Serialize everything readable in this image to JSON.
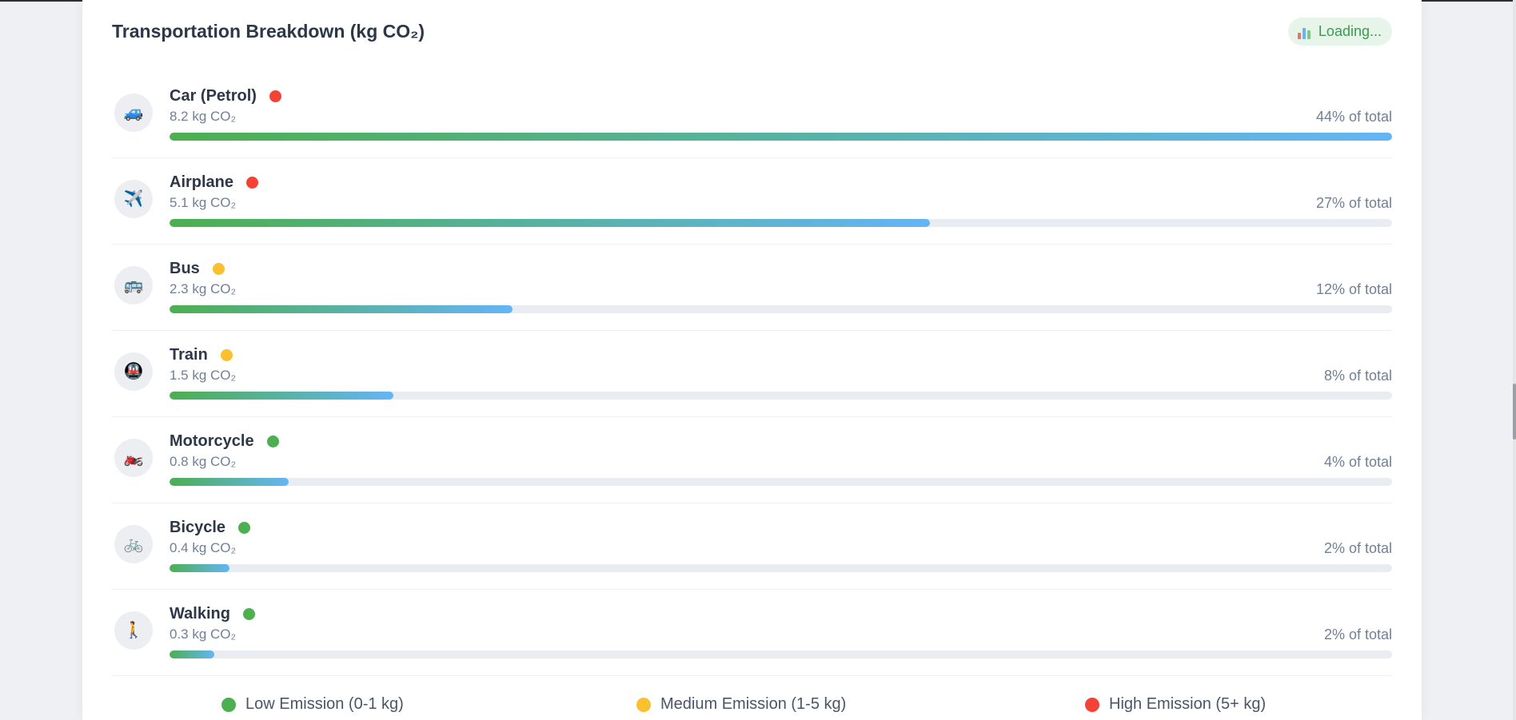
{
  "panel": {
    "title": "Transportation Breakdown (kg CO₂)",
    "status": "Loading..."
  },
  "colors": {
    "low": "#4caf50",
    "medium": "#fbc02d",
    "high": "#f44336",
    "bar_start": "#4caf50",
    "bar_end": "#64b5f6"
  },
  "rows": [
    {
      "key": "car",
      "icon": "car-icon",
      "glyph": "🚙",
      "name": "Car (Petrol)",
      "level": "high",
      "amount": "8.2 kg CO₂",
      "percent_label": "44% of total",
      "value": 8.2
    },
    {
      "key": "airplane",
      "icon": "airplane-icon",
      "glyph": "✈️",
      "name": "Airplane",
      "level": "high",
      "amount": "5.1 kg CO₂",
      "percent_label": "27% of total",
      "value": 5.1
    },
    {
      "key": "bus",
      "icon": "bus-icon",
      "glyph": "🚌",
      "name": "Bus",
      "level": "medium",
      "amount": "2.3 kg CO₂",
      "percent_label": "12% of total",
      "value": 2.3
    },
    {
      "key": "train",
      "icon": "train-icon",
      "glyph": "🚇",
      "name": "Train",
      "level": "medium",
      "amount": "1.5 kg CO₂",
      "percent_label": "8% of total",
      "value": 1.5
    },
    {
      "key": "motorcycle",
      "icon": "motorcycle-icon",
      "glyph": "🏍️",
      "name": "Motorcycle",
      "level": "low",
      "amount": "0.8 kg CO₂",
      "percent_label": "4% of total",
      "value": 0.8
    },
    {
      "key": "bicycle",
      "icon": "bicycle-icon",
      "glyph": "🚲",
      "name": "Bicycle",
      "level": "low",
      "amount": "0.4 kg CO₂",
      "percent_label": "2% of total",
      "value": 0.4
    },
    {
      "key": "walking",
      "icon": "walking-icon",
      "glyph": "🚶",
      "name": "Walking",
      "level": "low",
      "amount": "0.3 kg CO₂",
      "percent_label": "2% of total",
      "value": 0.3
    }
  ],
  "legend": [
    {
      "level": "low",
      "label": "Low Emission (0-1 kg)"
    },
    {
      "level": "medium",
      "label": "Medium Emission (1-5 kg)"
    },
    {
      "level": "high",
      "label": "High Emission (5+ kg)"
    }
  ]
}
